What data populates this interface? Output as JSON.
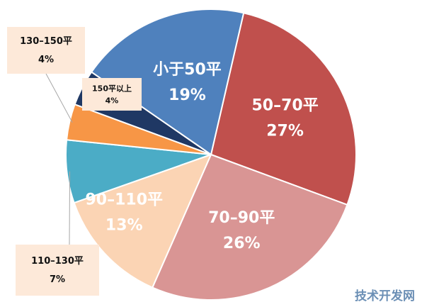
{
  "chart_data": {
    "type": "pie",
    "slices": [
      {
        "name": "50–70平",
        "value": 27,
        "value_label": "27%",
        "color": "#c0504d"
      },
      {
        "name": "70–90平",
        "value": 26,
        "value_label": "26%",
        "color": "#d99594"
      },
      {
        "name": "90–110平",
        "value": 13,
        "value_label": "13%",
        "color": "#fbd4b4"
      },
      {
        "name": "110–130平",
        "value": 7,
        "value_label": "7%",
        "color": "#4bacc6"
      },
      {
        "name": "130–150平",
        "value": 4,
        "value_label": "4%",
        "color": "#f79646"
      },
      {
        "name": "150平以上",
        "value": 4,
        "value_label": "4%",
        "color": "#1f3864"
      },
      {
        "name": "小于50平",
        "value": 19,
        "value_label": "19%",
        "color": "#4f81bd"
      }
    ],
    "label_text_colors": [
      "#ffffff",
      "#ffffff",
      "#ffffff",
      "#111111",
      "#111111",
      "#111111",
      "#ffffff"
    ],
    "callout_box_color": "#fde9d9",
    "legend": "none"
  },
  "watermark": {
    "text": "技术开发网",
    "color": "#6b8fb5"
  }
}
